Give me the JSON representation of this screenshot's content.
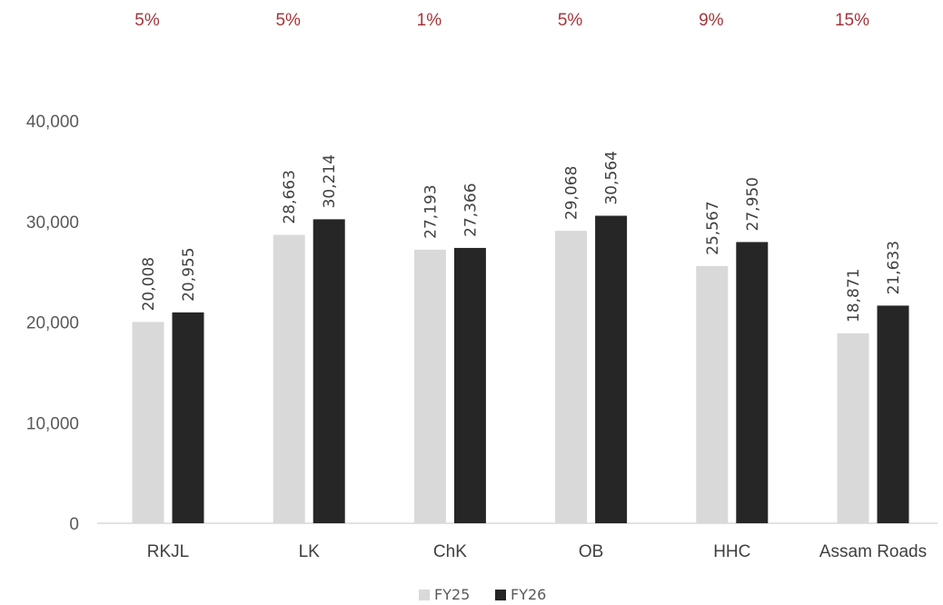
{
  "chart_data": {
    "type": "bar",
    "categories": [
      "RKJL",
      "LK",
      "ChK",
      "OB",
      "HHC",
      "Assam Roads"
    ],
    "series": [
      {
        "name": "FY25",
        "values": [
          20008,
          28663,
          27193,
          29068,
          25567,
          18871
        ],
        "color": "#d9d9d9"
      },
      {
        "name": "FY26",
        "values": [
          20955,
          30214,
          27366,
          30564,
          27950,
          21633
        ],
        "color": "#262626"
      }
    ],
    "data_labels": [
      [
        "20,008",
        "28,663",
        "27,193",
        "29,068",
        "25,567",
        "18,871"
      ],
      [
        "20,955",
        "30,214",
        "27,366",
        "30,564",
        "27,950",
        "21,633"
      ]
    ],
    "growth_labels": [
      "5%",
      "5%",
      "1%",
      "5%",
      "9%",
      "15%"
    ],
    "growth_color": "#a3353a",
    "y_ticks": [
      0,
      10000,
      20000,
      30000,
      40000
    ],
    "y_tick_labels": [
      "0",
      "10,000",
      "20,000",
      "30,000",
      "40,000"
    ],
    "ylim": [
      0,
      40000
    ],
    "grid": false,
    "legend_position": "bottom-center"
  }
}
